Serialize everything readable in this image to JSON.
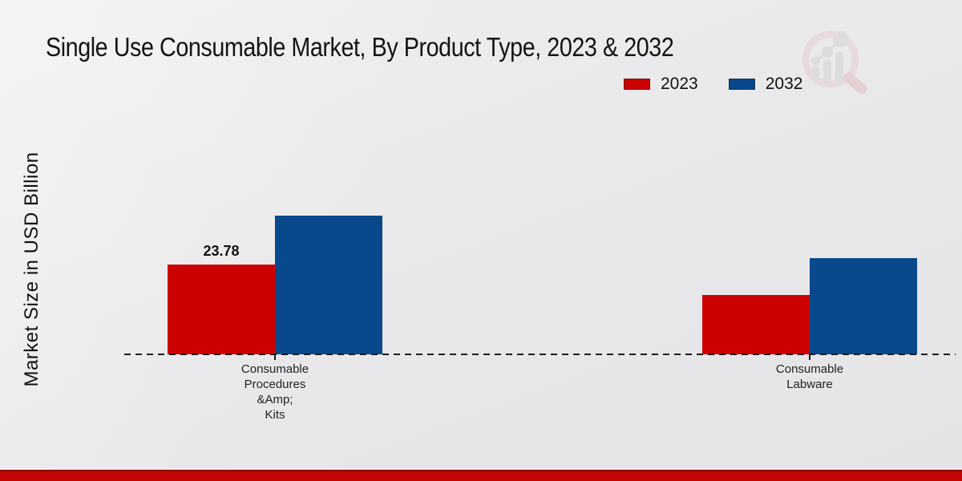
{
  "header": {
    "title": "Single Use Consumable Market, By Product Type, 2023 & 2032"
  },
  "axis": {
    "ylabel": "Market Size in USD Billion"
  },
  "legend": [
    {
      "label": "2023",
      "color": "#cc0000"
    },
    {
      "label": "2032",
      "color": "#07498a"
    }
  ],
  "watermark": {
    "icon": "magnifier-bar-chart-logo",
    "ring_color": "#e8cdd0",
    "bars_color": "#d2d2d5"
  },
  "footer": {
    "accent_color": "#c40606"
  },
  "chart_data": {
    "type": "bar",
    "title": "Single Use Consumable Market, By Product Type, 2023 & 2032",
    "categories": [
      "Consumable\nProcedures\n&Amp;\nKits",
      "Consumable\nLabware"
    ],
    "series": [
      {
        "name": "2023",
        "color": "#cc0000",
        "values": [
          23.78,
          15.7
        ]
      },
      {
        "name": "2032",
        "color": "#07498a",
        "values": [
          36.7,
          25.5
        ]
      }
    ],
    "bar_labels": [
      {
        "series_index": 0,
        "category_index": 0,
        "text": "23.78"
      }
    ],
    "xlabel": "",
    "ylabel": "Market Size in USD Billion",
    "ylim": [
      0,
      40
    ],
    "grid": false,
    "legend_position": "top-right",
    "baseline_style": "dashed"
  }
}
